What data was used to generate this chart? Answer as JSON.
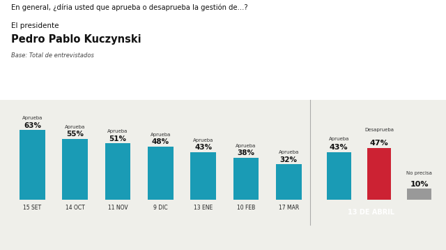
{
  "title_line1": "En general, ¿díria usted que aprueba o desaprueba la gestión de...?",
  "title_line2": "El presidente",
  "title_line3": "Pedro Pablo Kuczynski",
  "title_line4": "Base: Total de entrevistados",
  "main_dates": [
    "15 SET",
    "14 OCT",
    "11 NOV",
    "9 DIC",
    "13 ENE",
    "10 FEB",
    "17 MAR"
  ],
  "main_values": [
    63,
    55,
    51,
    48,
    43,
    38,
    32
  ],
  "main_color": "#1A9BB5",
  "april_date": "13 DE ABRIL",
  "april_bars": [
    {
      "label": "Aprueba",
      "value": 43,
      "color": "#1A9BB5"
    },
    {
      "label": "Desaprueba",
      "value": 47,
      "color": "#CC2233"
    },
    {
      "label": "No precisa",
      "value": 10,
      "color": "#999999"
    }
  ],
  "april_bg": "#4A1A08",
  "divider_color": "#999999",
  "background_color": "#EFEFEA",
  "header_bg": "#FFFFFF"
}
